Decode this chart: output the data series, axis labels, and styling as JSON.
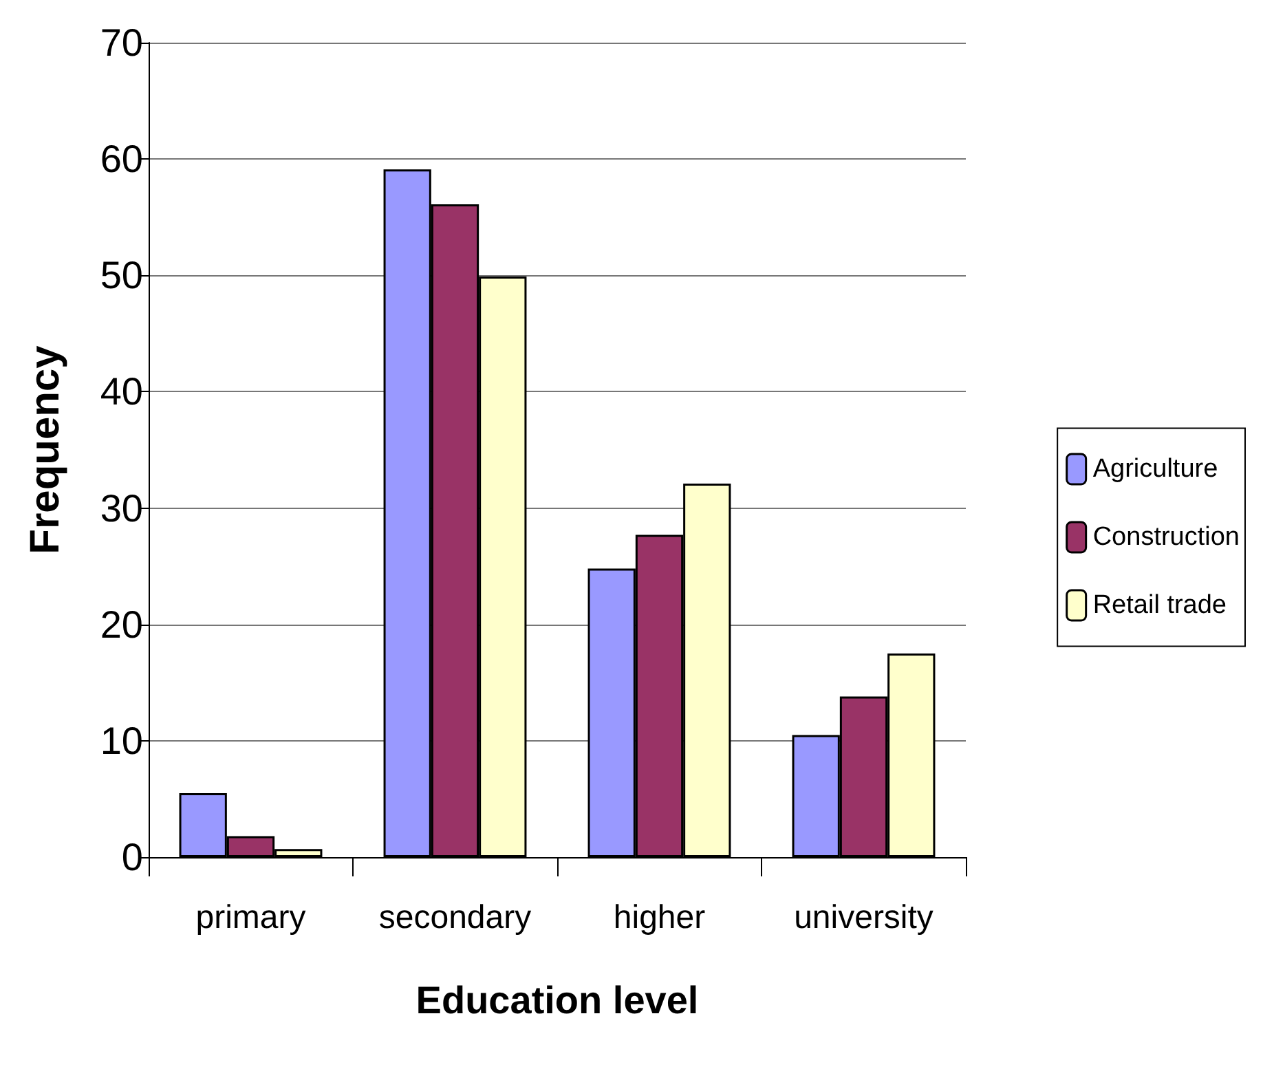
{
  "chart_data": {
    "type": "bar",
    "xlabel": "Education level",
    "ylabel": "Frequency",
    "categories": [
      "primary",
      "secondary",
      "higher",
      "university"
    ],
    "series": [
      {
        "name": "Agriculture",
        "color": "#9999ff",
        "values": [
          5.5,
          59.1,
          24.8,
          10.5
        ]
      },
      {
        "name": "Construction",
        "color": "#993366",
        "values": [
          1.8,
          56.1,
          27.7,
          13.8
        ]
      },
      {
        "name": "Retail trade",
        "color": "#ffffcc",
        "values": [
          0.7,
          49.9,
          32.1,
          17.5
        ]
      }
    ],
    "ylim": [
      0,
      70
    ],
    "yticks": [
      0,
      10,
      20,
      30,
      40,
      50,
      60,
      70
    ],
    "grid": "y",
    "legend": "right"
  }
}
